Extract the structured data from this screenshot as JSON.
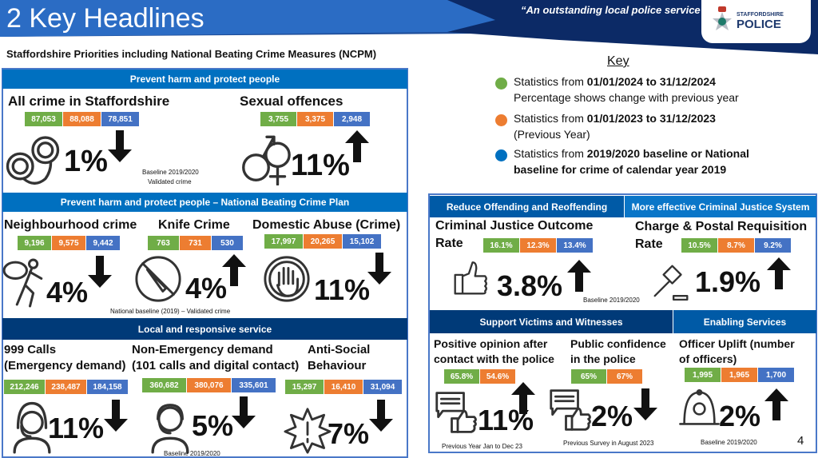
{
  "header": {
    "title": "2 Key Headlines",
    "slogan": "“An outstanding local police service”",
    "logo_line1": "STAFFORDSHIRE",
    "logo_line2": "POLICE"
  },
  "subtitle": "Staffordshire Priorities including National Beating Crime Measures (NCPM)",
  "colors": {
    "current": "#70ad47",
    "previous": "#ed7d31",
    "baseline": "#4472c4",
    "section": "#0070c0",
    "section_dark": "#003a78"
  },
  "key": {
    "title": "Key",
    "items": [
      {
        "color": "#70ad47",
        "text": "Statistics from ",
        "bold": "01/01/2024 to 31/12/2024",
        "line2": "Percentage shows change with previous year",
        "line2_bold": false
      },
      {
        "color": "#ed7d31",
        "text": "Statistics from ",
        "bold": "01/01/2023 to 31/12/2023",
        "line2": "(Previous Year)",
        "line2_bold": false
      },
      {
        "color": "#0070c0",
        "text": "Statistics from ",
        "bold": "2019/2020 baseline or National",
        "line2": "baseline for crime of calendar year 2019",
        "line2_bold": true
      }
    ]
  },
  "sections": [
    "Prevent harm and protect people",
    "Prevent harm and protect people – National Beating Crime Plan",
    "Local and responsive service",
    "Reduce Offending and Reoffending",
    "More effective Criminal Justice System",
    "Support Victims and Witnesses",
    "Enabling Services"
  ],
  "notes": [
    "Baseline 2019/2020",
    "Validated crime",
    "National baseline (2019) – Validated crime",
    "Baseline 2019/2020",
    "Baseline 2019/2020",
    "Previous Year Jan to Dec 23",
    "Previous Survey in August 2023",
    "Baseline 2019/2020"
  ],
  "metrics": [
    {
      "title": [
        "All crime in Staffordshire"
      ],
      "values": [
        "87,053",
        "88,088",
        "78,851"
      ],
      "change": "1%",
      "direction": "down",
      "icon": "handcuffs-icon"
    },
    {
      "title": [
        "Sexual offences"
      ],
      "values": [
        "3,755",
        "3,375",
        "2,948"
      ],
      "change": "11%",
      "direction": "up",
      "icon": "gender-symbols-icon"
    },
    {
      "title": [
        "Neighbourhood crime"
      ],
      "values": [
        "9,196",
        "9,575",
        "9,442"
      ],
      "change": "4%",
      "direction": "down",
      "icon": "burglar-icon"
    },
    {
      "title": [
        "Knife Crime"
      ],
      "values": [
        "763",
        "731",
        "530"
      ],
      "change": "4%",
      "direction": "up",
      "icon": "no-knife-icon"
    },
    {
      "title": [
        "Domestic Abuse (Crime)"
      ],
      "values": [
        "17,997",
        "20,265",
        "15,102"
      ],
      "change": "11%",
      "direction": "down",
      "icon": "stop-hand-icon"
    },
    {
      "title": [
        "999 Calls",
        "(Emergency demand)"
      ],
      "values": [
        "212,246",
        "238,487",
        "184,158"
      ],
      "change": "11%",
      "direction": "down",
      "icon": "female-operator-icon"
    },
    {
      "title": [
        "Non-Emergency demand",
        "(101 calls and digital contact)"
      ],
      "values": [
        "360,682",
        "380,076",
        "335,601"
      ],
      "change": "5%",
      "direction": "down",
      "icon": "male-operator-icon"
    },
    {
      "title": [
        "Anti-Social",
        "Behaviour"
      ],
      "values": [
        "15,297",
        "16,410",
        "31,094"
      ],
      "change": "7%",
      "direction": "down",
      "icon": "alert-burst-icon"
    },
    {
      "title": [
        "Criminal Justice Outcome",
        "Rate"
      ],
      "values": [
        "16.1%",
        "12.3%",
        "13.4%"
      ],
      "change": "3.8%",
      "direction": "up",
      "icon": "thumbs-up-icon"
    },
    {
      "title": [
        "Charge & Postal Requisition",
        "Rate"
      ],
      "values": [
        "10.5%",
        "8.7%",
        "9.2%"
      ],
      "change": "1.9%",
      "direction": "up",
      "icon": "gavel-icon"
    },
    {
      "title": [
        "Positive opinion after",
        "contact with the police"
      ],
      "values": [
        "65.8%",
        "54.6%"
      ],
      "change": "11%",
      "direction": "up",
      "icon": "feedback-thumbs-up-icon"
    },
    {
      "title": [
        "Public confidence",
        "in the police"
      ],
      "values": [
        "65%",
        "67%"
      ],
      "change": "2%",
      "direction": "down",
      "icon": "feedback-thumbs-up-icon"
    },
    {
      "title": [
        "Officer Uplift (number",
        "of  officers)"
      ],
      "values": [
        "1,995",
        "1,965",
        "1,700"
      ],
      "change": "2%",
      "direction": "up",
      "icon": "police-helmet-icon"
    }
  ],
  "page_number": "4"
}
